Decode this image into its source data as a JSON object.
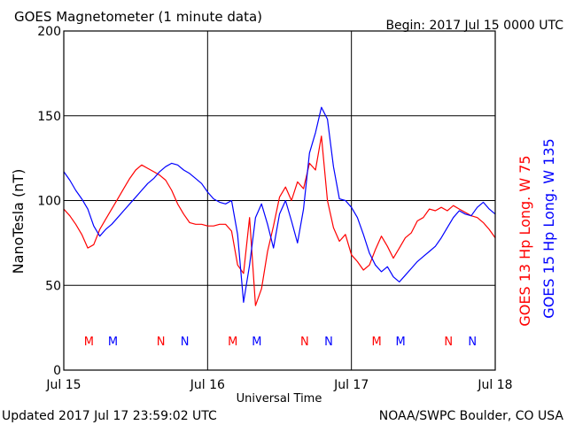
{
  "header": {
    "title": "GOES Magnetometer (1 minute data)",
    "begin": "Begin:  2017 Jul 15 0000 UTC"
  },
  "footer": {
    "updated": "Updated 2017 Jul 17 23:59:02 UTC",
    "credit": "NOAA/SWPC Boulder, CO USA"
  },
  "chart_data": {
    "type": "line",
    "title": "GOES Magnetometer (1 minute data)",
    "xlabel": "Universal Time",
    "ylabel": "NanoTesla (nT)",
    "ylim": [
      0,
      200
    ],
    "yticks": [
      0,
      50,
      100,
      150,
      200
    ],
    "xlim": [
      0,
      72
    ],
    "xunit": "hours since 2017 Jul 15 0000 UTC",
    "xticks": [
      {
        "hour": 0,
        "label": "Jul 15"
      },
      {
        "hour": 24,
        "label": "Jul 16"
      },
      {
        "hour": 48,
        "label": "Jul 17"
      },
      {
        "hour": 72,
        "label": "Jul 18"
      }
    ],
    "grid": true,
    "series": [
      {
        "name": "GOES 13 Hp  Long. W 75",
        "color": "#ff0000",
        "x": [
          0,
          1,
          2,
          3,
          4,
          5,
          6,
          7,
          8,
          9,
          10,
          11,
          12,
          13,
          14,
          15,
          16,
          17,
          18,
          19,
          20,
          21,
          22,
          23,
          24,
          25,
          26,
          27,
          28,
          29,
          30,
          31,
          32,
          33,
          34,
          35,
          36,
          37,
          38,
          39,
          40,
          41,
          42,
          43,
          44,
          45,
          46,
          47,
          48,
          49,
          50,
          51,
          52,
          53,
          54,
          55,
          56,
          57,
          58,
          59,
          60,
          61,
          62,
          63,
          64,
          65,
          66,
          67,
          68,
          69,
          70,
          71,
          72
        ],
        "values": [
          95,
          91,
          86,
          80,
          72,
          74,
          83,
          89,
          95,
          101,
          107,
          113,
          118,
          121,
          119,
          117,
          115,
          112,
          106,
          98,
          92,
          87,
          86,
          86,
          85,
          85,
          86,
          86,
          82,
          62,
          57,
          90,
          38,
          48,
          70,
          85,
          102,
          108,
          100,
          111,
          107,
          122,
          118,
          138,
          100,
          84,
          76,
          80,
          68,
          64,
          59,
          62,
          71,
          79,
          73,
          66,
          72,
          78,
          81,
          88,
          90,
          95,
          94,
          96,
          94,
          97,
          95,
          93,
          91,
          90,
          87,
          83,
          78
        ]
      },
      {
        "name": "GOES 15 Hp  Long. W 135",
        "color": "#0000ff",
        "x": [
          0,
          1,
          2,
          3,
          4,
          5,
          6,
          7,
          8,
          9,
          10,
          11,
          12,
          13,
          14,
          15,
          16,
          17,
          18,
          19,
          20,
          21,
          22,
          23,
          24,
          25,
          26,
          27,
          28,
          29,
          30,
          31,
          32,
          33,
          34,
          35,
          36,
          37,
          38,
          39,
          40,
          41,
          42,
          43,
          44,
          45,
          46,
          47,
          48,
          49,
          50,
          51,
          52,
          53,
          54,
          55,
          56,
          57,
          58,
          59,
          60,
          61,
          62,
          63,
          64,
          65,
          66,
          67,
          68,
          69,
          70,
          71,
          72
        ],
        "values": [
          117,
          112,
          106,
          101,
          95,
          85,
          79,
          83,
          86,
          90,
          94,
          98,
          102,
          106,
          110,
          113,
          117,
          120,
          122,
          121,
          118,
          116,
          113,
          110,
          105,
          101,
          99,
          98,
          100,
          80,
          40,
          62,
          90,
          98,
          86,
          72,
          92,
          100,
          88,
          75,
          95,
          128,
          140,
          155,
          148,
          120,
          101,
          100,
          96,
          90,
          80,
          69,
          62,
          58,
          61,
          55,
          52,
          56,
          60,
          64,
          67,
          70,
          73,
          78,
          84,
          90,
          94,
          92,
          91,
          96,
          99,
          95,
          92
        ]
      }
    ],
    "markers": [
      {
        "hour": 4.2,
        "label": "M",
        "color": "#ff0000"
      },
      {
        "hour": 8.2,
        "label": "M",
        "color": "#0000ff"
      },
      {
        "hour": 16.2,
        "label": "N",
        "color": "#ff0000"
      },
      {
        "hour": 20.2,
        "label": "N",
        "color": "#0000ff"
      },
      {
        "hour": 28.2,
        "label": "M",
        "color": "#ff0000"
      },
      {
        "hour": 32.2,
        "label": "M",
        "color": "#0000ff"
      },
      {
        "hour": 40.2,
        "label": "N",
        "color": "#ff0000"
      },
      {
        "hour": 44.2,
        "label": "N",
        "color": "#0000ff"
      },
      {
        "hour": 52.2,
        "label": "M",
        "color": "#ff0000"
      },
      {
        "hour": 56.2,
        "label": "M",
        "color": "#0000ff"
      },
      {
        "hour": 64.2,
        "label": "N",
        "color": "#ff0000"
      },
      {
        "hour": 68.2,
        "label": "N",
        "color": "#0000ff"
      }
    ],
    "colors": {
      "axis": "#000000",
      "grid": "#000000",
      "background": "#ffffff"
    }
  }
}
